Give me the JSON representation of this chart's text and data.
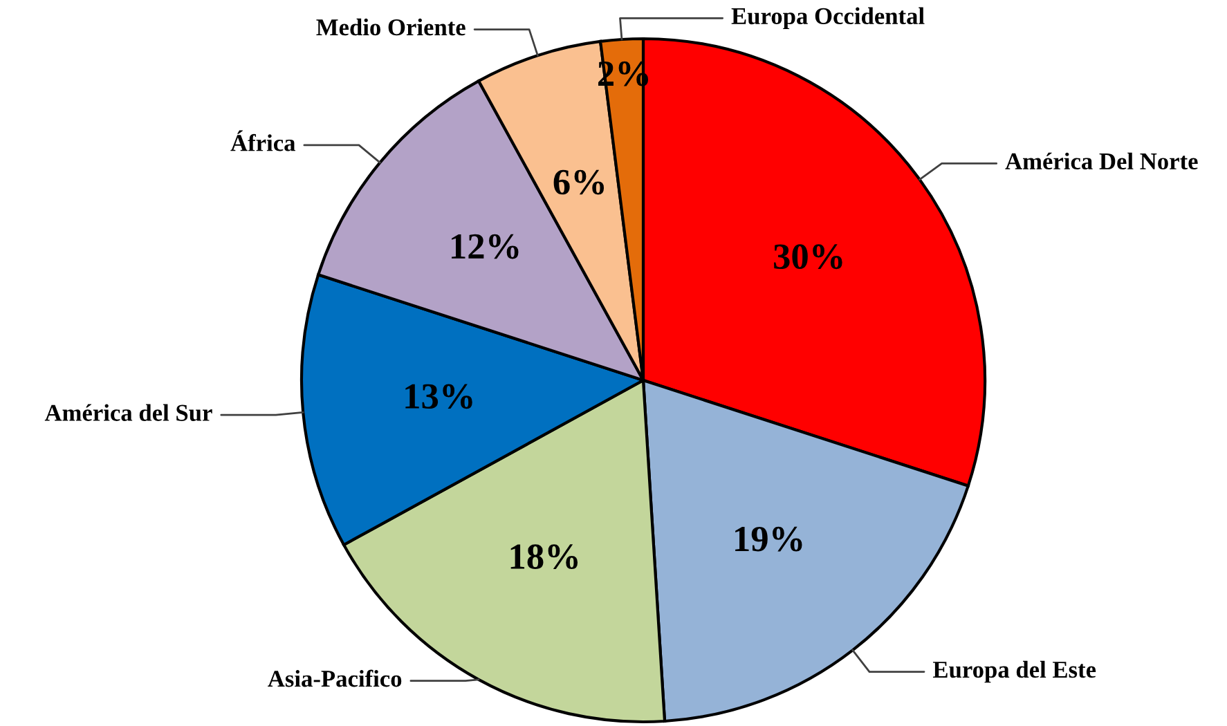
{
  "chart_data": {
    "type": "pie",
    "categories": [
      "América Del Norte",
      "Europa del Este",
      "Asia-Pacifico",
      "América del Sur",
      "África",
      "Medio Oriente",
      "Europa Occidental"
    ],
    "values": [
      30,
      19,
      18,
      13,
      12,
      6,
      2
    ],
    "colors": [
      "#ff0000",
      "#95b3d7",
      "#c3d69b",
      "#0070c0",
      "#b3a2c7",
      "#fac090",
      "#e46c0a"
    ],
    "value_labels": [
      "30%",
      "19%",
      "18%",
      "13%",
      "12%",
      "6%",
      "2%"
    ]
  }
}
